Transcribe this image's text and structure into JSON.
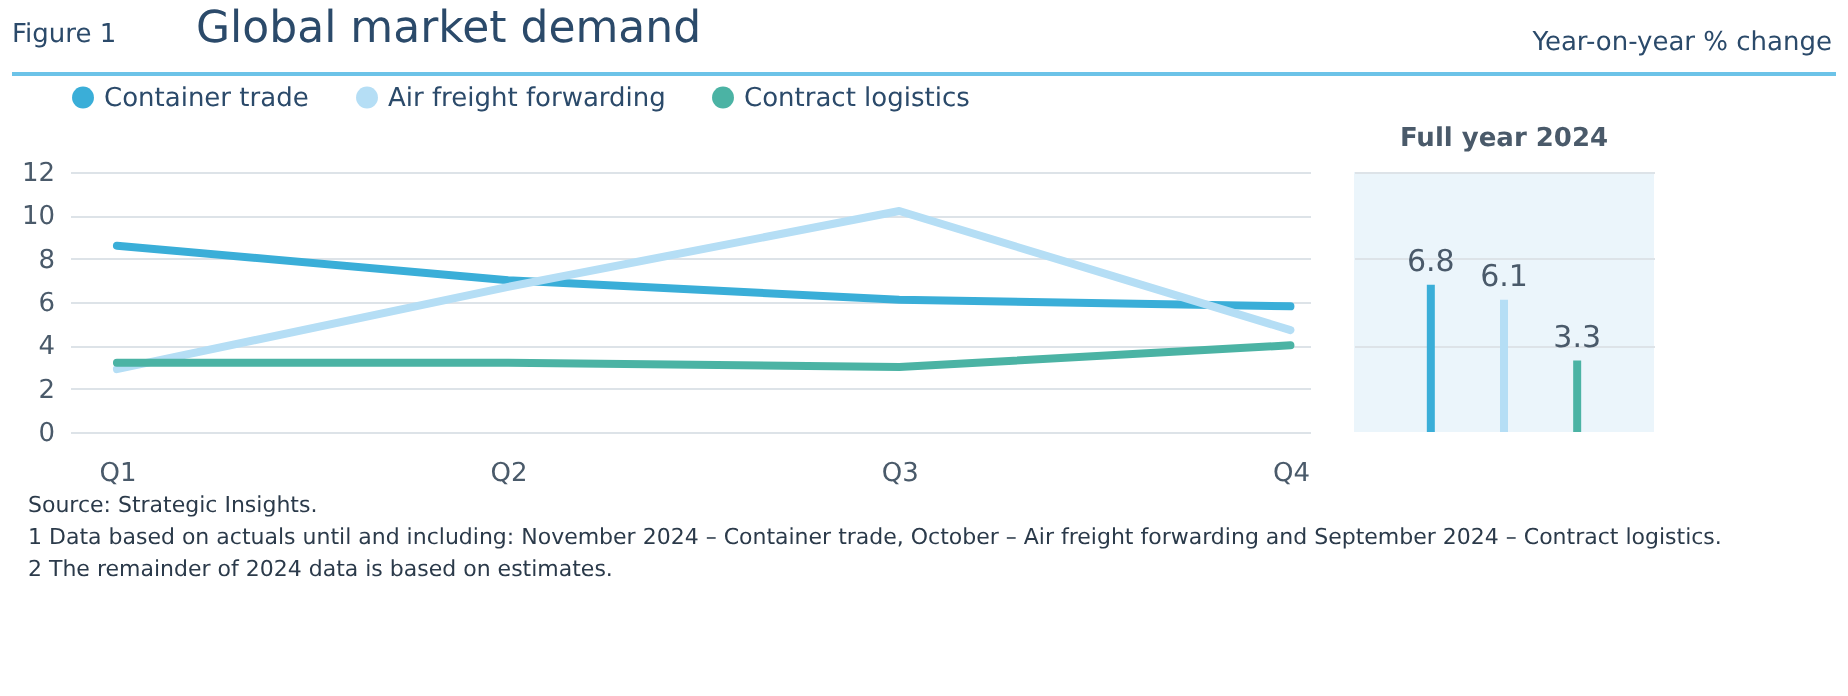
{
  "chart_data": [
    {
      "type": "line",
      "title": "Global market demand",
      "ylabel": "Year-on-year % change",
      "annotations": [
        "Figure 1",
        "Source: Strategic Insights.",
        "1  Data based on actuals until and including: November 2024 – Container trade, October – Air freight forwarding and September 2024 – Contract logistics.",
        "2  The remainder of 2024 data is based on estimates."
      ],
      "categories": [
        "Q1",
        "Q2",
        "Q3",
        "Q4"
      ],
      "series": [
        {
          "name": "Container trade",
          "color": "#3aaed8",
          "values": [
            8.6,
            7.0,
            6.1,
            5.8
          ]
        },
        {
          "name": "Air freight forwarding",
          "color": "#b5def5",
          "values": [
            2.9,
            6.7,
            10.2,
            4.7
          ]
        },
        {
          "name": "Contract logistics",
          "color": "#4bb3a4",
          "values": [
            3.2,
            3.2,
            3.0,
            4.0
          ]
        }
      ],
      "ylim": [
        0,
        12
      ],
      "yticks": [
        0,
        2,
        4,
        6,
        8,
        10,
        12
      ],
      "grid": "y",
      "legend": "top left",
      "marker": "none"
    },
    {
      "type": "bar",
      "title": "Full year 2024",
      "categories": [
        null,
        null,
        null
      ],
      "values": [
        6.8,
        6.1,
        3.3
      ],
      "colors": [
        "#3aaed8",
        "#b5def5",
        "#4bb3a4"
      ],
      "data_labels": true,
      "ylim": [
        0,
        12
      ],
      "yticks": [
        0,
        2,
        4,
        6,
        8,
        10,
        12
      ],
      "grid": "y",
      "tick_labels": false
    }
  ]
}
